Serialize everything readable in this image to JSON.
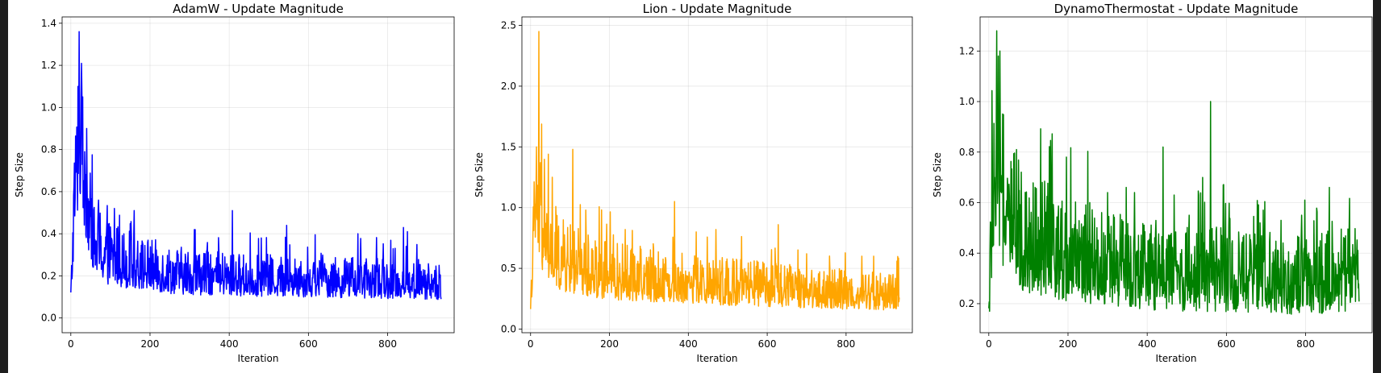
{
  "chart_data": [
    {
      "type": "line",
      "title": "AdamW - Update Magnitude",
      "xlabel": "Iteration",
      "ylabel": "Step Size",
      "xlim": [
        -22,
        968
      ],
      "ylim": [
        -0.07,
        1.43
      ],
      "xticks": [
        0,
        200,
        400,
        600,
        800
      ],
      "yticks": [
        0.0,
        0.2,
        0.4,
        0.6,
        0.8,
        1.0,
        1.2,
        1.4
      ],
      "grid": true,
      "color": "#0000ff",
      "series": [
        {
          "profile": [
            [
              0,
              0.1
            ],
            [
              4,
              0.28
            ],
            [
              8,
              0.52
            ],
            [
              14,
              0.66
            ],
            [
              22,
              0.86
            ],
            [
              30,
              0.74
            ],
            [
              45,
              0.48
            ],
            [
              60,
              0.33
            ],
            [
              90,
              0.28
            ],
            [
              150,
              0.24
            ],
            [
              250,
              0.2
            ],
            [
              400,
              0.18
            ],
            [
              600,
              0.17
            ],
            [
              800,
              0.16
            ],
            [
              935,
              0.15
            ]
          ],
          "spikes": [
            [
              21,
              1.36
            ],
            [
              18,
              1.1
            ],
            [
              26,
              1.06
            ],
            [
              30,
              1.05
            ],
            [
              13,
              0.83
            ],
            [
              40,
              0.9
            ],
            [
              35,
              0.79
            ],
            [
              70,
              0.56
            ],
            [
              110,
              0.52
            ],
            [
              160,
              0.51
            ],
            [
              312,
              0.42
            ],
            [
              408,
              0.51
            ],
            [
              545,
              0.44
            ],
            [
              725,
              0.4
            ],
            [
              840,
              0.43
            ],
            [
              850,
              0.41
            ],
            [
              930,
              0.25
            ]
          ]
        }
      ]
    },
    {
      "type": "line",
      "title": "Lion - Update Magnitude",
      "xlabel": "Iteration",
      "ylabel": "Step Size",
      "xlim": [
        -22,
        968
      ],
      "ylim": [
        -0.03,
        2.57
      ],
      "xticks": [
        0,
        200,
        400,
        600,
        800
      ],
      "yticks": [
        0.0,
        0.5,
        1.0,
        1.5,
        2.0,
        2.5
      ],
      "grid": true,
      "color": "#ffa500",
      "series": [
        {
          "profile": [
            [
              0,
              0.1
            ],
            [
              4,
              0.5
            ],
            [
              8,
              0.78
            ],
            [
              14,
              0.95
            ],
            [
              22,
              0.85
            ],
            [
              35,
              0.65
            ],
            [
              60,
              0.55
            ],
            [
              100,
              0.5
            ],
            [
              200,
              0.42
            ],
            [
              400,
              0.36
            ],
            [
              600,
              0.32
            ],
            [
              800,
              0.28
            ],
            [
              935,
              0.27
            ]
          ],
          "spikes": [
            [
              21,
              2.45
            ],
            [
              15,
              1.5
            ],
            [
              25,
              1.37
            ],
            [
              45,
              1.44
            ],
            [
              55,
              1.25
            ],
            [
              107,
              1.48
            ],
            [
              140,
              0.98
            ],
            [
              240,
              0.82
            ],
            [
              365,
              1.05
            ],
            [
              420,
              0.8
            ],
            [
              470,
              0.82
            ],
            [
              628,
              0.86
            ],
            [
              700,
              0.62
            ],
            [
              840,
              0.6
            ],
            [
              870,
              0.6
            ]
          ]
        }
      ]
    },
    {
      "type": "line",
      "title": "DynamoThermostat - Update Magnitude",
      "xlabel": "Iteration",
      "ylabel": "Step Size",
      "xlim": [
        -22,
        968
      ],
      "ylim": [
        0.085,
        1.335
      ],
      "xticks": [
        0,
        200,
        400,
        600,
        800
      ],
      "yticks": [
        0.2,
        0.4,
        0.6,
        0.8,
        1.0,
        1.2
      ],
      "grid": true,
      "color": "#008000",
      "series": [
        {
          "profile": [
            [
              0,
              0.14
            ],
            [
              5,
              0.4
            ],
            [
              12,
              0.58
            ],
            [
              20,
              0.62
            ],
            [
              35,
              0.55
            ],
            [
              60,
              0.47
            ],
            [
              100,
              0.42
            ],
            [
              200,
              0.36
            ],
            [
              400,
              0.3
            ],
            [
              600,
              0.29
            ],
            [
              800,
              0.27
            ],
            [
              935,
              0.3
            ]
          ],
          "spikes": [
            [
              20,
              1.28
            ],
            [
              28,
              1.2
            ],
            [
              24,
              1.18
            ],
            [
              15,
              0.7
            ],
            [
              70,
              0.81
            ],
            [
              117,
              0.66
            ],
            [
              135,
              0.68
            ],
            [
              196,
              0.78
            ],
            [
              255,
              0.6
            ],
            [
              300,
              0.64
            ],
            [
              347,
              0.66
            ],
            [
              368,
              0.64
            ],
            [
              440,
              0.82
            ],
            [
              530,
              0.63
            ],
            [
              560,
              1.0
            ],
            [
              592,
              0.67
            ],
            [
              685,
              0.52
            ],
            [
              738,
              0.53
            ],
            [
              790,
              0.55
            ],
            [
              860,
              0.66
            ],
            [
              910,
              0.5
            ]
          ]
        }
      ]
    }
  ]
}
